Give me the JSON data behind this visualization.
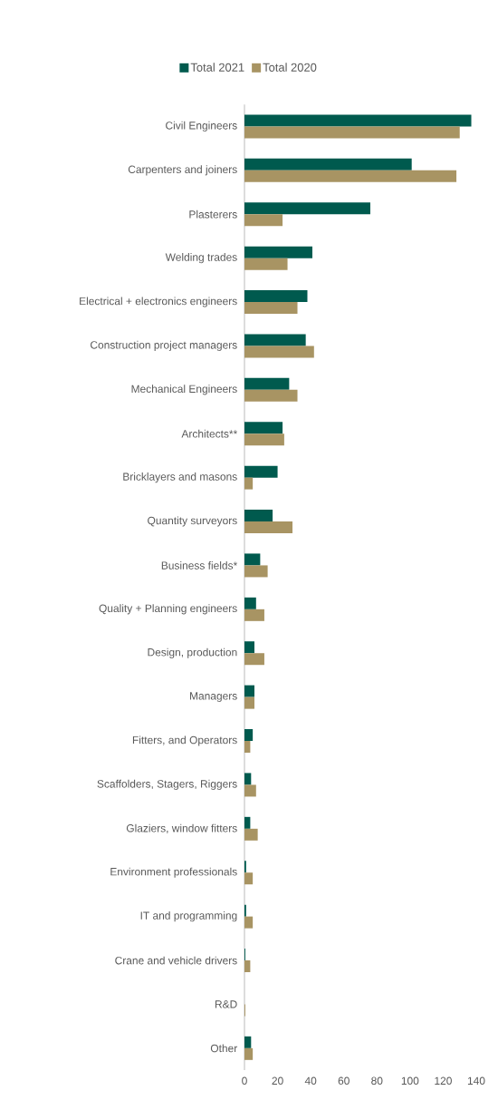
{
  "chart_data": {
    "type": "bar",
    "orientation": "horizontal",
    "categories": [
      "Civil Engineers",
      "Carpenters and joiners",
      "Plasterers",
      "Welding trades",
      "Electrical + electronics engineers",
      "Construction project managers",
      "Mechanical Engineers",
      "Architects**",
      "Bricklayers and masons",
      "Quantity surveyors",
      "Business fields*",
      "Quality + Planning engineers",
      "Design, production",
      "Managers",
      "Fitters, and Operators",
      "Scaffolders, Stagers, Riggers",
      "Glaziers, window fitters",
      "Environment professionals",
      "IT and programming",
      "Crane and vehicle drivers",
      "R&D",
      "Other"
    ],
    "series": [
      {
        "name": "Total 2021",
        "color": "#005a4e",
        "values": [
          137,
          101,
          76,
          41,
          38,
          37,
          27,
          23,
          20,
          17,
          9.5,
          7,
          6,
          6,
          5,
          4,
          3.5,
          1,
          1,
          0.5,
          0,
          4
        ]
      },
      {
        "name": "Total 2020",
        "color": "#a89463",
        "values": [
          130,
          128,
          23,
          26,
          32,
          42,
          32,
          24,
          5,
          29,
          14,
          12,
          12,
          6,
          3.5,
          7,
          8,
          5,
          5,
          3.5,
          0.5,
          5
        ]
      }
    ],
    "xlim": [
      0,
      140
    ],
    "xticks": [
      0,
      20,
      40,
      60,
      80,
      100,
      120,
      140
    ],
    "legend": "top"
  }
}
